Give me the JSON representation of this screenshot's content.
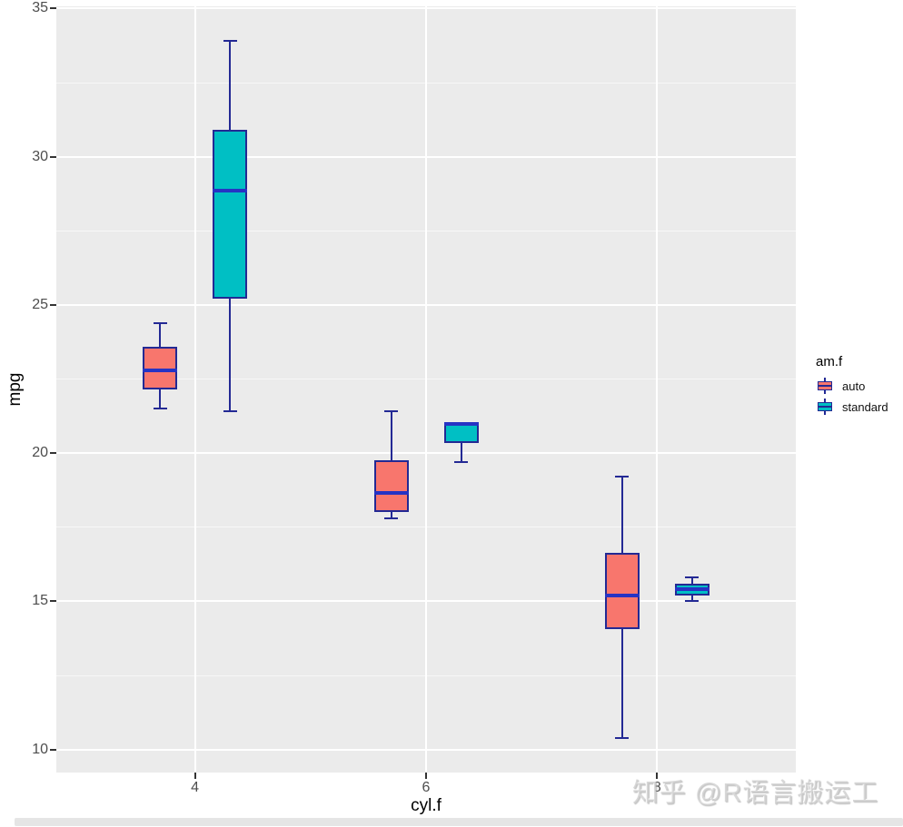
{
  "chart_data": {
    "type": "boxplot",
    "title": "",
    "xlabel": "cyl.f",
    "ylabel": "mpg",
    "categories": [
      "4",
      "6",
      "8"
    ],
    "ylim": [
      9.225,
      35.075
    ],
    "y_major_ticks": [
      35,
      30,
      25,
      20,
      15,
      10
    ],
    "y_minor_ticks": [
      32.5,
      27.5,
      22.5,
      17.5,
      12.5
    ],
    "grid": true,
    "legend_position": "right",
    "series": [
      {
        "name": "auto",
        "fill": "#F8766D",
        "boxes": [
          {
            "category": "4",
            "whisker_low": 21.5,
            "q1": 22.15,
            "median": 22.8,
            "q3": 23.6,
            "whisker_high": 24.4
          },
          {
            "category": "6",
            "whisker_low": 17.8,
            "q1": 18.03,
            "median": 18.65,
            "q3": 19.75,
            "whisker_high": 21.4
          },
          {
            "category": "8",
            "whisker_low": 10.4,
            "q1": 14.05,
            "median": 15.2,
            "q3": 16.63,
            "whisker_high": 19.2
          }
        ]
      },
      {
        "name": "standard",
        "fill": "#00BFC4",
        "boxes": [
          {
            "category": "4",
            "whisker_low": 21.4,
            "q1": 25.2,
            "median": 28.85,
            "q3": 30.9,
            "whisker_high": 33.9
          },
          {
            "category": "6",
            "whisker_low": 19.7,
            "q1": 20.35,
            "median": 21.0,
            "q3": 21.0,
            "whisker_high": 21.0
          },
          {
            "category": "8",
            "whisker_low": 15.0,
            "q1": 15.2,
            "median": 15.4,
            "q3": 15.6,
            "whisker_high": 15.8
          }
        ]
      }
    ]
  },
  "legend": {
    "title": "am.f",
    "items": [
      {
        "label": "auto",
        "fill": "#F8766D"
      },
      {
        "label": "standard",
        "fill": "#00BFC4"
      }
    ]
  },
  "colors": {
    "panel_bg": "#EBEBEB",
    "grid": "#FFFFFF",
    "box_border": "#232994",
    "median_line": "#2633C4",
    "fill_auto": "#F8766D",
    "fill_standard": "#00BFC4",
    "tick_label": "#4D4D4D"
  },
  "watermark": {
    "text": "知乎 @R语言搬运工"
  }
}
